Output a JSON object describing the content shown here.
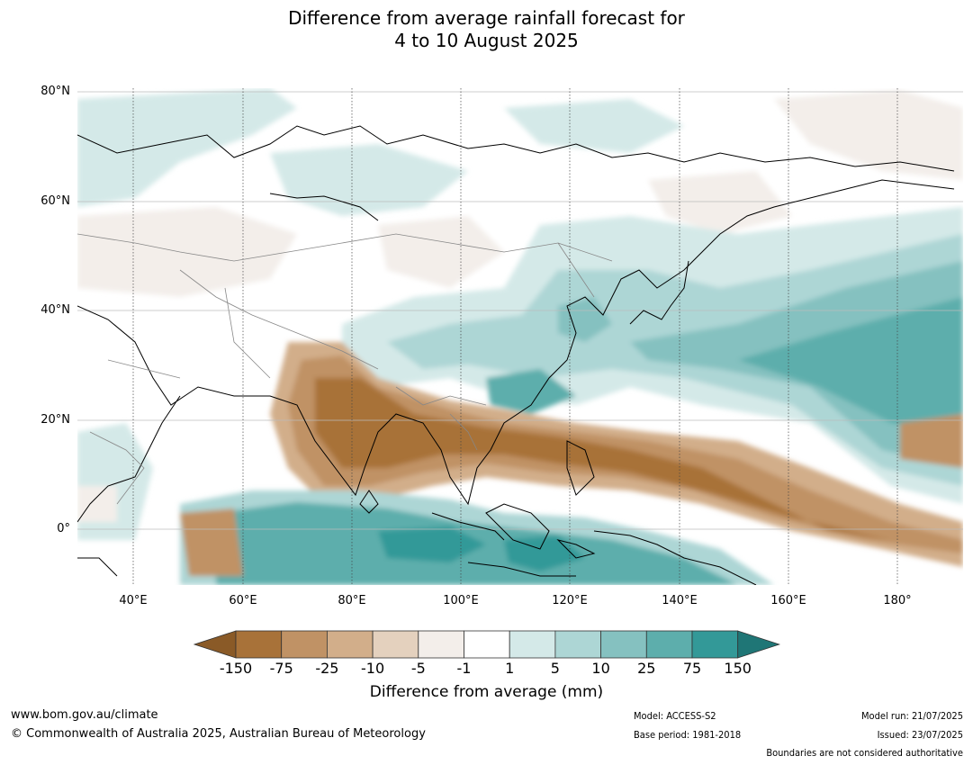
{
  "title_line1": "Difference from average rainfall forecast for",
  "title_line2": "4 to 10 August 2025",
  "lat_labels": [
    "80°N",
    "60°N",
    "40°N",
    "20°N",
    "0°"
  ],
  "lon_labels": [
    "40°E",
    "60°E",
    "80°E",
    "100°E",
    "120°E",
    "140°E",
    "160°E",
    "180°"
  ],
  "colorbar": {
    "ticks": [
      "-150",
      "-75",
      "-25",
      "-10",
      "-5",
      "-1",
      "1",
      "5",
      "10",
      "25",
      "75",
      "150"
    ],
    "colors": [
      "#8a5a27",
      "#a87239",
      "#c09265",
      "#d2ae8a",
      "#e4d1be",
      "#f3eeea",
      "#ffffff",
      "#d4e9e8",
      "#add6d5",
      "#85c1c0",
      "#5daeac",
      "#339998",
      "#1f7676"
    ],
    "label": "Difference from average (mm)"
  },
  "footer": {
    "website": "www.bom.gov.au/climate",
    "copyright": "© Commonwealth of Australia 2025, Australian Bureau of Meteorology",
    "model": "Model: ACCESS-S2",
    "base_period": "Base period: 1981-2018",
    "model_run": "Model run: 21/07/2025",
    "issued": "Issued: 23/07/2025",
    "disclaimer": "Boundaries are not considered authoritative"
  }
}
